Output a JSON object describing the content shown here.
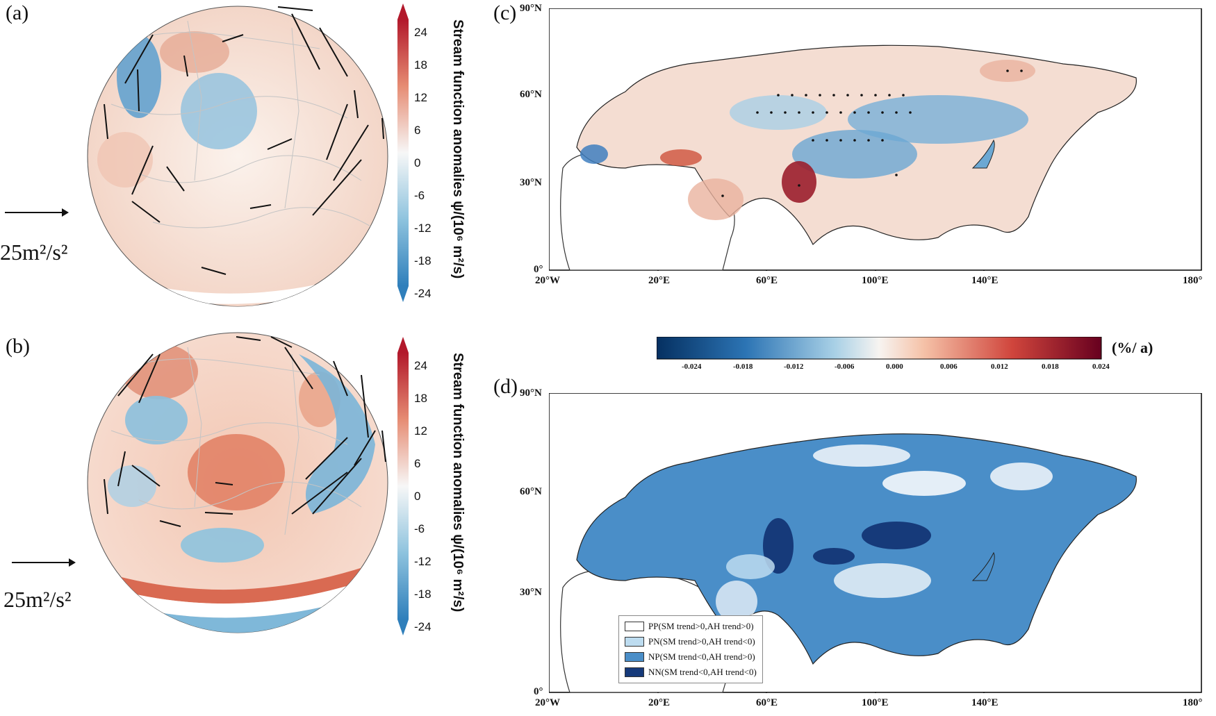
{
  "panels": {
    "a": {
      "label": "(a)",
      "arrow_scale": "25m²/s²"
    },
    "b": {
      "label": "(b)",
      "arrow_scale": "25m²/s²"
    },
    "c": {
      "label": "(c)"
    },
    "d": {
      "label": "(d)"
    }
  },
  "stream_colorbar": {
    "title": "Stream function anomalies ψ/(10⁶ m²/s)",
    "ticks": [
      "24",
      "18",
      "12",
      "6",
      "0",
      "-6",
      "-12",
      "-18",
      "-24"
    ]
  },
  "trend_colorbar": {
    "unit": "(%/ a)",
    "ticks": [
      "-0.024",
      "-0.018",
      "-0.012",
      "-0.006",
      "0.000",
      "0.006",
      "0.012",
      "0.018",
      "0.024"
    ]
  },
  "map_axes": {
    "x_ticks": [
      "20°W",
      "20°E",
      "60°E",
      "100°E",
      "140°E",
      "180°"
    ],
    "y_ticks": [
      "90°N",
      "60°N",
      "30°N",
      "0°"
    ]
  },
  "legend_d": [
    {
      "label": "PP(SM trend>0,AH trend>0)",
      "color": "#ffffff"
    },
    {
      "label": "PN(SM trend>0,AH trend<0)",
      "color": "#bddcf0"
    },
    {
      "label": "NP(SM trend<0,AH trend>0)",
      "color": "#4a8ec8"
    },
    {
      "label": "NN(SM trend<0,AH trend<0)",
      "color": "#163a7a"
    }
  ],
  "colors": {
    "red": "#b2182b",
    "blue": "#2166ac",
    "land_blue": "#4a8ec8"
  }
}
